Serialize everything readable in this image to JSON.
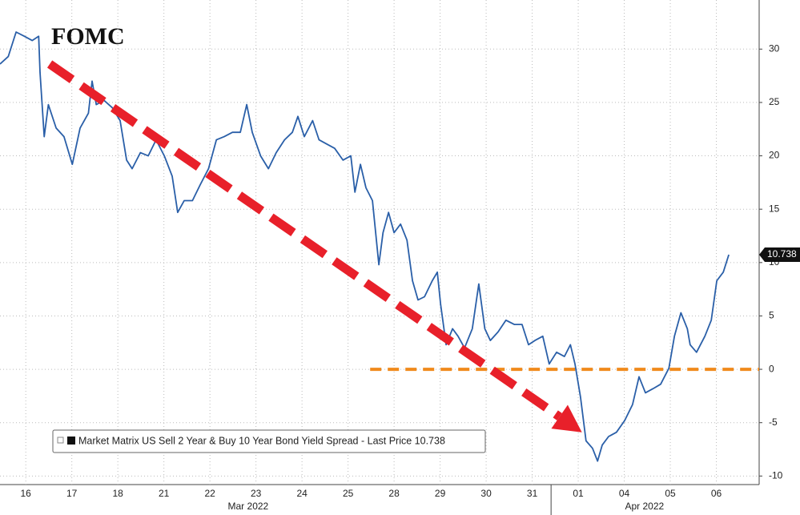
{
  "chart_data": {
    "type": "line",
    "annotation": "FOMC",
    "legend_label": "Market Matrix US Sell 2 Year & Buy 10 Year Bond Yield Spread - Last Price 10.738",
    "last_price": 10.738,
    "x": [
      -0.56,
      -0.38,
      -0.21,
      -0.03,
      0.14,
      0.28,
      0.31,
      0.4,
      0.49,
      0.66,
      0.83,
      1.01,
      1.18,
      1.36,
      1.44,
      1.53,
      1.7,
      1.88,
      2.05,
      2.19,
      2.31,
      2.49,
      2.66,
      2.83,
      3.01,
      3.18,
      3.3,
      3.44,
      3.62,
      3.79,
      3.97,
      4.14,
      4.31,
      4.49,
      4.66,
      4.8,
      4.92,
      5.1,
      5.27,
      5.44,
      5.62,
      5.79,
      5.91,
      6.05,
      6.23,
      6.37,
      6.54,
      6.71,
      6.89,
      7.06,
      7.15,
      7.27,
      7.39,
      7.53,
      7.67,
      7.76,
      7.88,
      8,
      8.14,
      8.28,
      8.4,
      8.52,
      8.66,
      8.83,
      8.94,
      9.01,
      9.13,
      9.27,
      9.39,
      9.53,
      9.7,
      9.84,
      9.97,
      10.09,
      10.26,
      10.43,
      10.61,
      10.78,
      10.92,
      11.06,
      11.23,
      11.37,
      11.53,
      11.7,
      11.83,
      11.93,
      12.05,
      12.17,
      12.31,
      12.42,
      12.52,
      12.66,
      12.83,
      13.01,
      13.18,
      13.32,
      13.46,
      13.63,
      13.79,
      13.97,
      14.09,
      14.23,
      14.37,
      14.43,
      14.57,
      14.75,
      14.89,
      15.01,
      15.15,
      15.27
    ],
    "series": [
      {
        "color": "#2a5fa8",
        "values": [
          28.6,
          29.3,
          31.6,
          31.2,
          30.8,
          31.2,
          27.8,
          21.8,
          24.8,
          22.6,
          21.8,
          19.2,
          22.6,
          24,
          27,
          24.8,
          25.2,
          24.5,
          23.3,
          19.6,
          18.8,
          20.3,
          20,
          21.5,
          20,
          18.1,
          14.7,
          15.8,
          15.8,
          17.3,
          18.8,
          21.5,
          21.8,
          22.2,
          22.2,
          24.8,
          22.2,
          20,
          18.8,
          20.3,
          21.5,
          22.2,
          23.7,
          21.8,
          23.3,
          21.5,
          21.1,
          20.7,
          19.6,
          20,
          16.6,
          19.2,
          17,
          15.8,
          9.8,
          12.8,
          14.7,
          12.8,
          13.6,
          12.1,
          8.3,
          6.5,
          6.8,
          8.3,
          9.1,
          6.1,
          2.3,
          3.8,
          3.1,
          2,
          3.8,
          8,
          3.8,
          2.7,
          3.5,
          4.6,
          4.2,
          4.2,
          2.3,
          2.7,
          3.1,
          0.5,
          1.6,
          1.2,
          2.3,
          0.5,
          -2.6,
          -6.7,
          -7.4,
          -8.6,
          -7.1,
          -6.3,
          -5.9,
          -4.8,
          -3.3,
          -0.7,
          -2.2,
          -1.8,
          -1.4,
          0.1,
          3.1,
          5.3,
          3.8,
          2.3,
          1.6,
          3.1,
          4.6,
          8.3,
          9.1,
          10.738
        ]
      }
    ],
    "xlim": [
      -0.56,
      15.93
    ],
    "xticks": [
      {
        "value": 0,
        "label": "16"
      },
      {
        "value": 1,
        "label": "17"
      },
      {
        "value": 2,
        "label": "18"
      },
      {
        "value": 3,
        "label": "21"
      },
      {
        "value": 4,
        "label": "22"
      },
      {
        "value": 5,
        "label": "23"
      },
      {
        "value": 6,
        "label": "24"
      },
      {
        "value": 7,
        "label": "25"
      },
      {
        "value": 8,
        "label": "28"
      },
      {
        "value": 9,
        "label": "29"
      },
      {
        "value": 10,
        "label": "30"
      },
      {
        "value": 11,
        "label": "31"
      },
      {
        "value": 12,
        "label": "01"
      },
      {
        "value": 13,
        "label": "04"
      },
      {
        "value": 14,
        "label": "05"
      },
      {
        "value": 15,
        "label": "06"
      }
    ],
    "x_groups": [
      {
        "label": "Mar 2022",
        "center": 4.83
      },
      {
        "label": "Apr 2022",
        "center": 13.44,
        "start": 11.41
      }
    ],
    "ylim": [
      -10.8,
      34.6
    ],
    "yticks": [
      -10,
      -5,
      0,
      5,
      10,
      15,
      20,
      25,
      30
    ],
    "grid": true,
    "arrow": {
      "x": [
        0.52,
        12.08
      ],
      "y": [
        28.6,
        -5.9
      ],
      "color": "#e8202a"
    },
    "reference_line": {
      "value": 0,
      "from_x": 7.48,
      "color": "#f08a1c"
    }
  }
}
